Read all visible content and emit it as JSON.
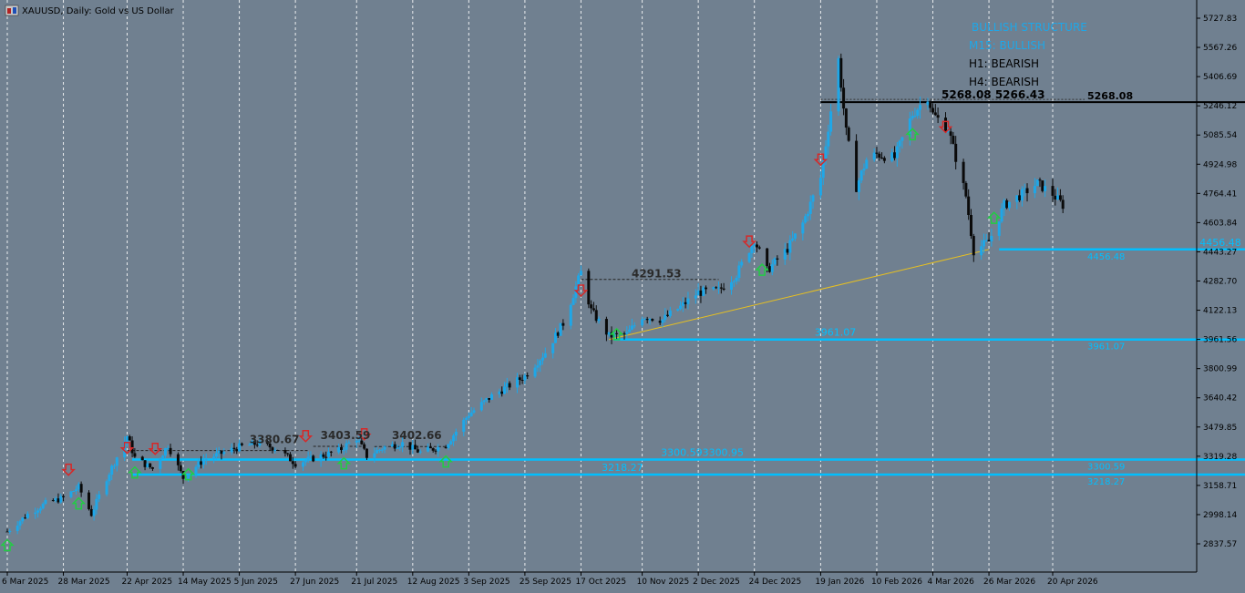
{
  "window": {
    "title": "XAUUSD, Daily:  Gold vs US Dollar",
    "icon": "chart-window-icon"
  },
  "colors": {
    "background": "#708090",
    "bull": "#1ea7e8",
    "bear": "#0a0a0a",
    "grid": "#ffffff",
    "level": "#00bfff",
    "trendline": "#e8c020",
    "up_arrow": "#22cc44",
    "down_arrow": "#d62828"
  },
  "info_panel": {
    "structure": "BULLISH STRUCTURE",
    "m15": "M15: BULLISH",
    "h1": "H1: BEARISH",
    "h4": "H4: BEARISH"
  },
  "chart_data": {
    "type": "candlestick",
    "symbol": "XAUUSD",
    "timeframe": "Daily",
    "title": "XAUUSD, Daily:  Gold vs US Dollar",
    "x_tick_labels": [
      "6 Mar 2025",
      "28 Mar 2025",
      "22 Apr 2025",
      "14 May 2025",
      "5 Jun 2025",
      "27 Jun 2025",
      "21 Jul 2025",
      "12 Aug 2025",
      "3 Sep 2025",
      "25 Sep 2025",
      "17 Oct 2025",
      "10 Nov 2025",
      "2 Dec 2025",
      "24 Dec 2025",
      "19 Jan 2026",
      "10 Feb 2026",
      "4 Mar 2026",
      "26 Mar 2026",
      "20 Apr 2026"
    ],
    "y_tick_labels": [
      "5727.83",
      "5567.26",
      "5406.69",
      "5246.12",
      "5085.54",
      "4924.98",
      "4764.41",
      "4603.84",
      "4443.27",
      "4282.70",
      "4122.13",
      "3961.56",
      "3800.99",
      "3640.42",
      "3479.85",
      "3319.28",
      "3158.71",
      "2998.14",
      "2837.57"
    ],
    "ylim": [
      2760,
      5810
    ],
    "grid": "vertical-dashed",
    "price_path": [
      [
        "6 Mar 2025",
        2905
      ],
      [
        "14 Mar 2025",
        3000
      ],
      [
        "21 Mar 2025",
        3060
      ],
      [
        "28 Mar 2025",
        3090
      ],
      [
        "3 Apr 2025",
        3150
      ],
      [
        "8 Apr 2025",
        3000
      ],
      [
        "14 Apr 2025",
        3200
      ],
      [
        "22 Apr 2025",
        3430
      ],
      [
        "25 Apr 2025",
        3310
      ],
      [
        "2 May 2025",
        3250
      ],
      [
        "8 May 2025",
        3380
      ],
      [
        "14 May 2025",
        3200
      ],
      [
        "22 May 2025",
        3300
      ],
      [
        "5 Jun 2025",
        3370
      ],
      [
        "12 Jun 2025",
        3390
      ],
      [
        "20 Jun 2025",
        3360
      ],
      [
        "27 Jun 2025",
        3280
      ],
      [
        "7 Jul 2025",
        3320
      ],
      [
        "14 Jul 2025",
        3350
      ],
      [
        "21 Jul 2025",
        3420
      ],
      [
        "25 Jul 2025",
        3320
      ],
      [
        "1 Aug 2025",
        3370
      ],
      [
        "8 Aug 2025",
        3390
      ],
      [
        "15 Aug 2025",
        3340
      ],
      [
        "25 Aug 2025",
        3380
      ],
      [
        "3 Sep 2025",
        3550
      ],
      [
        "12 Sep 2025",
        3650
      ],
      [
        "25 Sep 2025",
        3760
      ],
      [
        "3 Oct 2025",
        3890
      ],
      [
        "10 Oct 2025",
        4050
      ],
      [
        "17 Oct 2025",
        4330
      ],
      [
        "21 Oct 2025",
        4120
      ],
      [
        "28 Oct 2025",
        3980
      ],
      [
        "4 Nov 2025",
        3990
      ],
      [
        "10 Nov 2025",
        4090
      ],
      [
        "18 Nov 2025",
        4070
      ],
      [
        "25 Nov 2025",
        4140
      ],
      [
        "2 Dec 2025",
        4220
      ],
      [
        "10 Dec 2025",
        4230
      ],
      [
        "17 Dec 2025",
        4320
      ],
      [
        "24 Dec 2025",
        4510
      ],
      [
        "29 Dec 2025",
        4340
      ],
      [
        "6 Jan 2026",
        4460
      ],
      [
        "12 Jan 2026",
        4600
      ],
      [
        "19 Jan 2026",
        4850
      ],
      [
        "26 Jan 2026",
        5500
      ],
      [
        "29 Jan 2026",
        5100
      ],
      [
        "2 Feb 2026",
        4800
      ],
      [
        "6 Feb 2026",
        4950
      ],
      [
        "10 Feb 2026",
        4980
      ],
      [
        "17 Feb 2026",
        4960
      ],
      [
        "24 Feb 2026",
        5200
      ],
      [
        "2 Mar 2026",
        5300
      ],
      [
        "4 Mar 2026",
        5200
      ],
      [
        "10 Mar 2026",
        5120
      ],
      [
        "17 Mar 2026",
        4750
      ],
      [
        "20 Mar 2026",
        4450
      ],
      [
        "26 Mar 2026",
        4500
      ],
      [
        "1 Apr 2026",
        4700
      ],
      [
        "8 Apr 2026",
        4760
      ],
      [
        "14 Apr 2026",
        4820
      ],
      [
        "20 Apr 2026",
        4760
      ],
      [
        "24 Apr 2026",
        4700
      ]
    ],
    "levels": [
      {
        "price": 5266.43,
        "color": "#000000",
        "label_left": "5268.08 5266.43",
        "label_right": "5268.08",
        "start": "19 Jan 2026",
        "dashed_start": "19 Jan 2026"
      },
      {
        "price": 4456.48,
        "color": "#00bfff",
        "label_left": "4456.48",
        "label_right": "4456.48",
        "start": "30 Mar 2026"
      },
      {
        "price": 3961.07,
        "color": "#00bfff",
        "label_left": "3961.07",
        "label_right": "3961.07",
        "start": "30 Oct 2025"
      },
      {
        "price": 3300.95,
        "color": "#00bfff",
        "label_left": "3300.593300.95",
        "label_right": "3300.59",
        "start": "24 Apr 2025"
      },
      {
        "price": 3218.27,
        "color": "#00bfff",
        "label_left": "3218.27",
        "label_right": "3218.27",
        "start": "24 Apr 2025"
      }
    ],
    "swing_highs": [
      {
        "price": 4291.53,
        "label": "4291.53",
        "start": "17 Oct 2025",
        "end": "10 Dec 2025"
      },
      {
        "price": 3380.67,
        "label": "3380.67",
        "start": "22 Apr 2025",
        "end": "2 Jul 2025"
      },
      {
        "price": 3403.59,
        "label": "3403.59",
        "start": "4 Jul 2025",
        "end": "24 Jul 2025"
      },
      {
        "price": 3402.66,
        "label": "3402.66",
        "start": "28 Jul 2025",
        "end": "25 Aug 2025"
      }
    ],
    "trendline": {
      "from": [
        "28 Oct 2025",
        3961.07
      ],
      "to": [
        "26 Mar 2026",
        4456.48
      ]
    },
    "up_arrows": [
      [
        "6 Mar 2025",
        2830
      ],
      [
        "3 Apr 2025",
        3060
      ],
      [
        "25 Apr 2025",
        3230
      ],
      [
        "16 May 2025",
        3220
      ],
      [
        "16 Jul 2025",
        3280
      ],
      [
        "25 Aug 2025",
        3290
      ],
      [
        "31 Oct 2025",
        3990
      ],
      [
        "27 Dec 2025",
        4345
      ],
      [
        "24 Feb 2026",
        5090
      ],
      [
        "28 Mar 2026",
        4630
      ]
    ],
    "down_arrows": [
      [
        "30 Mar 2025",
        3245
      ],
      [
        "22 Apr 2025",
        3365
      ],
      [
        "3 May 2025",
        3360
      ],
      [
        "1 Jul 2025",
        3430
      ],
      [
        "24 Jul 2025",
        3440
      ],
      [
        "17 Oct 2025",
        4230
      ],
      [
        "22 Dec 2025",
        4500
      ],
      [
        "19 Jan 2026",
        4950
      ],
      [
        "9 Mar 2026",
        5130
      ]
    ]
  }
}
